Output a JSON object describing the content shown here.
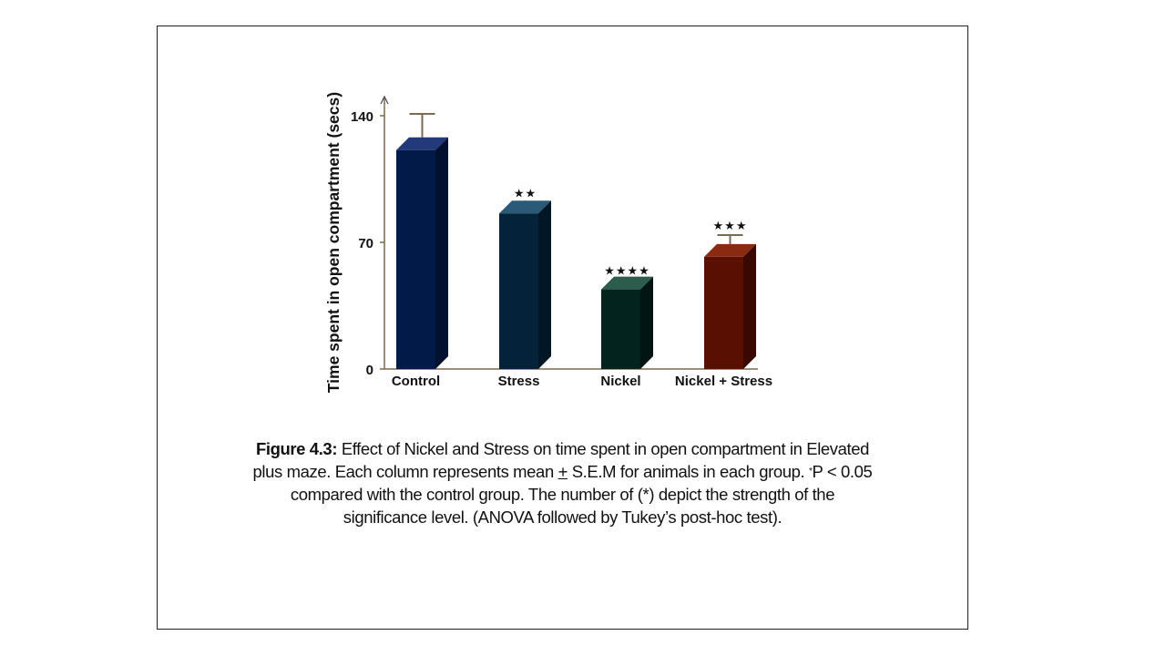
{
  "chart_data": {
    "type": "bar",
    "style": "3d-column",
    "categories": [
      "Control",
      "Stress",
      "Nickel",
      "Nickel + Stress"
    ],
    "values": [
      121,
      86,
      44,
      62
    ],
    "errors": [
      20,
      6,
      5,
      12
    ],
    "significance": [
      "",
      "**",
      "****",
      "***"
    ],
    "ylabel": "Time spent in open compartment (secs)",
    "xlabel": "",
    "yticks": [
      0,
      70,
      140
    ],
    "ylim": [
      0,
      150
    ],
    "grid": false,
    "colors": {
      "front": [
        "#021a48",
        "#04233a",
        "#03231f",
        "#5a0f03"
      ],
      "top": [
        "#22397a",
        "#2b5a78",
        "#2c5c4c",
        "#8a2a12"
      ],
      "side": [
        "#01112f",
        "#021726",
        "#011613",
        "#3a0801"
      ],
      "error_bar": "#7a6a50",
      "axis": "#7a6a50"
    }
  },
  "caption": {
    "label": "Figure 4.3:",
    "line1": " Effect of Nickel and Stress on time spent in open compartment in Elevated",
    "line2a": "plus maze. Each column represents mean ",
    "pm": "+",
    "line2b": " S.E.M for animals in each group. ",
    "star": "*",
    "line2c": "P < 0.05",
    "line3": "compared with the control group. The number of (*) depict the strength of the",
    "line4": "significance level. (ANOVA followed by Tukey’s post-hoc test)."
  }
}
